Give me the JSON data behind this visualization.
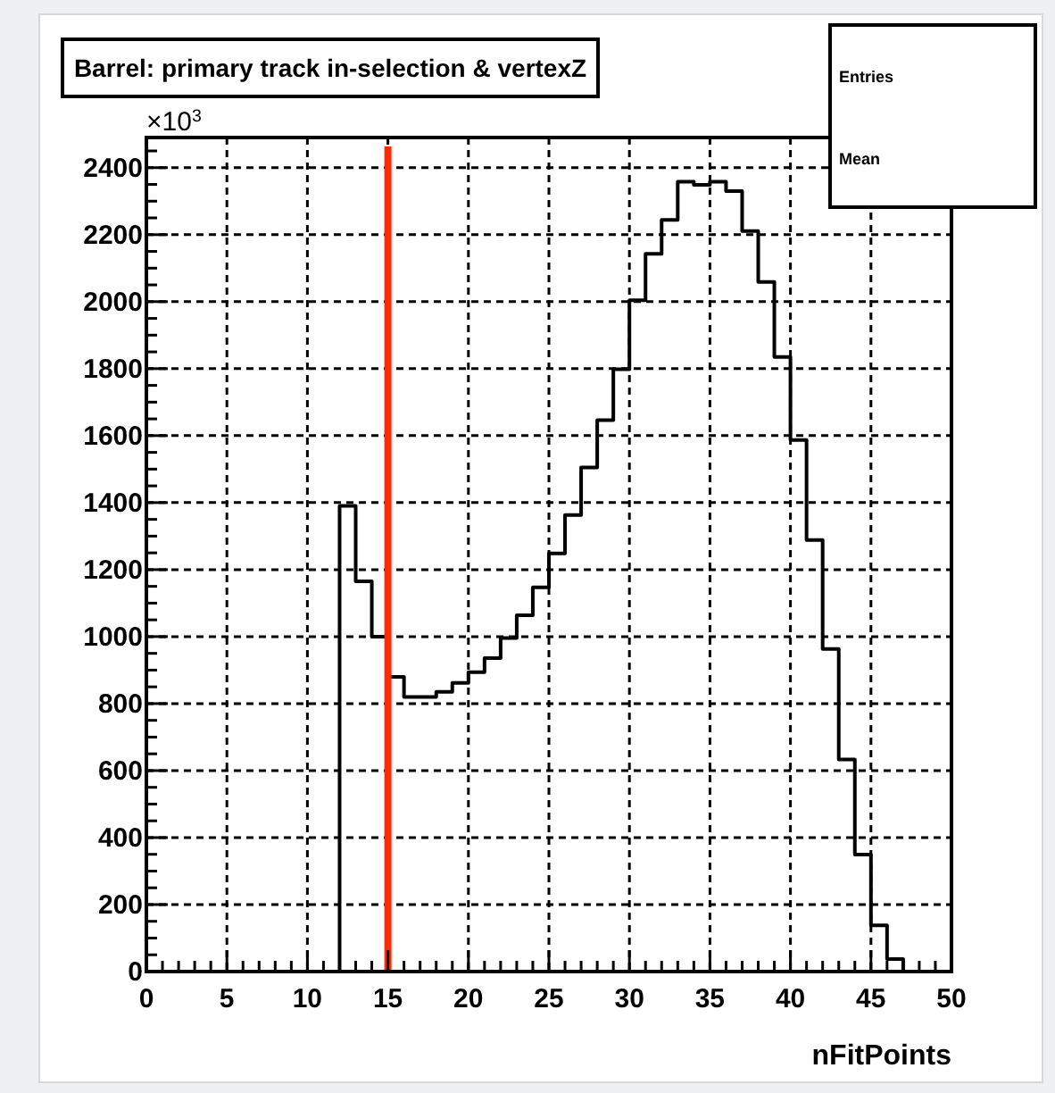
{
  "chart_data": {
    "type": "histogram",
    "title": "Barrel: primary track in-selection & vertexZ",
    "xlabel": "nFitPoints",
    "ylabel": "×10$^{3}$",
    "bins": [
      0,
      1,
      2,
      3,
      4,
      5,
      6,
      7,
      8,
      9,
      10,
      11,
      12,
      13,
      14,
      15,
      16,
      17,
      18,
      19,
      20,
      21,
      22,
      23,
      24,
      25,
      26,
      27,
      28,
      29,
      30,
      31,
      32,
      33,
      34,
      35,
      36,
      37,
      38,
      39,
      40,
      41,
      42,
      43,
      44,
      45,
      46,
      47,
      48,
      49,
      50
    ],
    "values": [
      0,
      0,
      0,
      0,
      0,
      0,
      0,
      0,
      0,
      0,
      0,
      0,
      1390,
      1165,
      1000,
      880,
      820,
      820,
      835,
      862,
      894,
      936,
      996,
      1064,
      1147,
      1248,
      1363,
      1505,
      1646,
      1798,
      2004,
      2143,
      2244,
      2358,
      2349,
      2358,
      2330,
      2211,
      2059,
      1835,
      1587,
      1288,
      963,
      633,
      349,
      138,
      37,
      0,
      0,
      0
    ],
    "color": "#000000",
    "xlim": [
      0,
      50
    ],
    "ylim": [
      0,
      2490
    ],
    "xticks": [
      0,
      5,
      10,
      15,
      20,
      25,
      30,
      35,
      40,
      45,
      50
    ],
    "yticks": [
      0,
      200,
      400,
      600,
      800,
      1000,
      1200,
      1400,
      1600,
      1800,
      2000,
      2200,
      2400
    ],
    "grid": true,
    "ref_lines": [
      {
        "axis": "x",
        "value": 15,
        "color": "#ff2a00"
      }
    ],
    "annotations": [
      "Entries",
      "Mean"
    ]
  }
}
